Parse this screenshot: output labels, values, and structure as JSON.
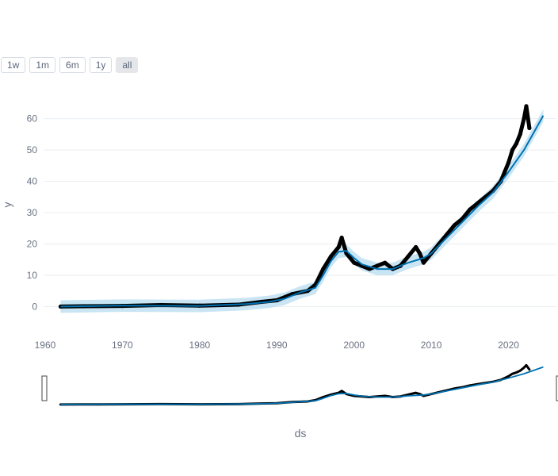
{
  "range_selector": {
    "buttons": [
      {
        "label": "1w",
        "active": false
      },
      {
        "label": "1m",
        "active": false
      },
      {
        "label": "6m",
        "active": false
      },
      {
        "label": "1y",
        "active": false
      },
      {
        "label": "all",
        "active": true
      }
    ]
  },
  "colors": {
    "observed": "#000000",
    "forecast_line": "#0072b2",
    "uncertainty_band": "#b7dcf0",
    "grid": "#eaedf1",
    "axis_text": "#6b7282"
  },
  "chart_data": {
    "type": "scatter",
    "xlabel": "ds",
    "ylabel": "y",
    "xlim": [
      1959.8,
      2026.2
    ],
    "ylim": [
      -8,
      67
    ],
    "x_ticks": [
      1960,
      1970,
      1980,
      1990,
      2000,
      2010,
      2020
    ],
    "y_ticks": [
      0,
      10,
      20,
      30,
      40,
      50,
      60
    ],
    "grid": true,
    "range_slider": true,
    "series": [
      {
        "kind": "observed",
        "style": "markers",
        "x": [
          1962.0,
          1965.0,
          1970.0,
          1975.0,
          1980.0,
          1985.0,
          1988.0,
          1990.0,
          1992.0,
          1994.0,
          1995.0,
          1996.0,
          1997.0,
          1998.0,
          1998.4,
          1999.0,
          2000.0,
          2001.0,
          2002.0,
          2003.0,
          2004.0,
          2005.0,
          2006.0,
          2007.0,
          2008.0,
          2008.5,
          2009.0,
          2010.0,
          2011.0,
          2012.0,
          2013.0,
          2014.0,
          2015.0,
          2016.0,
          2017.0,
          2018.0,
          2019.0,
          2019.5,
          2020.0,
          2020.5,
          2021.0,
          2021.5,
          2022.0,
          2022.3,
          2022.7
        ],
        "y": [
          0.0,
          0.1,
          0.2,
          0.5,
          0.3,
          0.6,
          1.5,
          2.0,
          4.0,
          5.0,
          7.0,
          12.0,
          16.0,
          19.0,
          22.0,
          17.0,
          14.0,
          13.0,
          12.0,
          13.0,
          14.0,
          12.0,
          13.0,
          16.0,
          19.0,
          17.0,
          14.0,
          17.0,
          20.0,
          23.0,
          26.0,
          28.0,
          31.0,
          33.0,
          35.0,
          37.0,
          40.0,
          43.0,
          46.0,
          50.0,
          52.0,
          55.0,
          60.0,
          64.0,
          57.0
        ]
      },
      {
        "kind": "forecast",
        "style": "line",
        "x": [
          1962.0,
          1970.0,
          1980.0,
          1986.0,
          1989.0,
          1991.0,
          1993.0,
          1995.0,
          1996.0,
          1997.0,
          1998.0,
          1999.0,
          2000.0,
          2001.0,
          2003.0,
          2005.0,
          2007.0,
          2009.0,
          2010.0,
          2012.0,
          2014.0,
          2016.0,
          2018.0,
          2020.0,
          2022.0,
          2024.5
        ],
        "y": [
          0.0,
          0.3,
          0.2,
          0.8,
          1.5,
          2.5,
          4.5,
          6.0,
          10.0,
          14.5,
          17.5,
          17.8,
          15.5,
          13.5,
          12.0,
          12.0,
          14.0,
          15.5,
          17.0,
          22.0,
          27.0,
          32.0,
          36.5,
          43.0,
          50.0,
          61.0
        ]
      }
    ],
    "uncertainty_halfwidth": 2.0
  }
}
